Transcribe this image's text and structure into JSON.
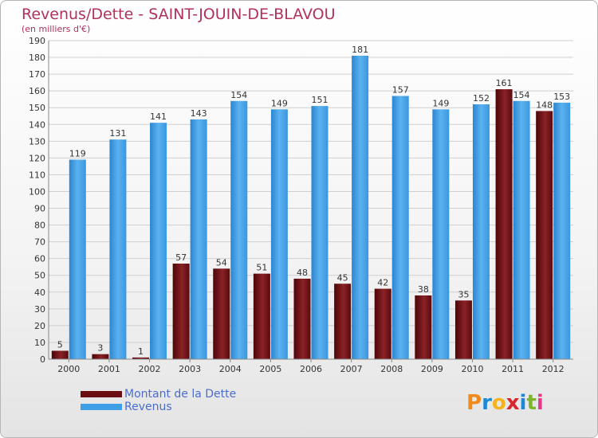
{
  "header": {
    "title": "Revenus/Dette - SAINT-JOUIN-DE-BLAVOU",
    "subtitle": "(en milliers d'€)"
  },
  "colors": {
    "dette": "#7a1a1f",
    "revenus": "#3f9fe6",
    "text": "#b1315a",
    "legend_text": "#4a6ccd"
  },
  "legend": [
    {
      "label": "Montant de la Dette",
      "color": "#6a0e12"
    },
    {
      "label": "Revenus",
      "color": "#3f9fe6"
    }
  ],
  "logo": {
    "letters": [
      "P",
      "r",
      "o",
      "x",
      "i",
      "t",
      "i"
    ],
    "colors": [
      "#f08a1c",
      "#1e88d8",
      "#f5b21b",
      "#d6262e",
      "#1e88d8",
      "#7ab829",
      "#e83a8c"
    ]
  },
  "chart_data": {
    "type": "bar",
    "categories": [
      "2000",
      "2001",
      "2002",
      "2003",
      "2004",
      "2005",
      "2006",
      "2007",
      "2008",
      "2009",
      "2010",
      "2011",
      "2012"
    ],
    "series": [
      {
        "name": "Montant de la Dette",
        "values": [
          5,
          3,
          1,
          57,
          54,
          51,
          48,
          45,
          42,
          38,
          35,
          161,
          148
        ]
      },
      {
        "name": "Revenus",
        "values": [
          119,
          131,
          141,
          143,
          154,
          149,
          151,
          181,
          157,
          149,
          152,
          154,
          153
        ]
      }
    ],
    "ylim": [
      0,
      190
    ],
    "yticks": [
      0,
      10,
      20,
      30,
      40,
      50,
      60,
      70,
      80,
      90,
      100,
      110,
      120,
      130,
      140,
      150,
      160,
      170,
      180,
      190
    ],
    "grid": true,
    "legend_position": "bottom-left"
  }
}
